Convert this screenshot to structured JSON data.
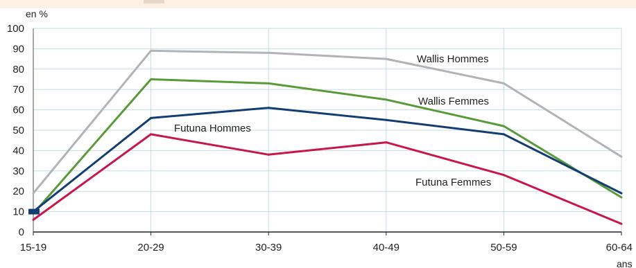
{
  "chart_data": {
    "type": "line",
    "ylabel": "en %",
    "xlabel": "ans",
    "ylim": [
      0,
      100
    ],
    "yticks": [
      0,
      10,
      20,
      30,
      40,
      50,
      60,
      70,
      80,
      90,
      100
    ],
    "categories": [
      "15-19",
      "20-29",
      "30-39",
      "40-49",
      "50-59",
      "60-64"
    ],
    "grid": true,
    "legend": "inline labels",
    "series": [
      {
        "name": "Wallis Hommes",
        "color": "#b3b3b6",
        "values": [
          19,
          89,
          88,
          85,
          73,
          37
        ]
      },
      {
        "name": "Wallis Femmes",
        "color": "#5a9a3a",
        "values": [
          9,
          75,
          73,
          65,
          52,
          17
        ]
      },
      {
        "name": "Futuna Hommes",
        "color": "#143d74",
        "values": [
          10,
          56,
          61,
          55,
          48,
          19
        ]
      },
      {
        "name": "Futuna Femmes",
        "color": "#c8174a",
        "values": [
          6,
          48,
          38,
          44,
          28,
          4
        ]
      }
    ]
  }
}
